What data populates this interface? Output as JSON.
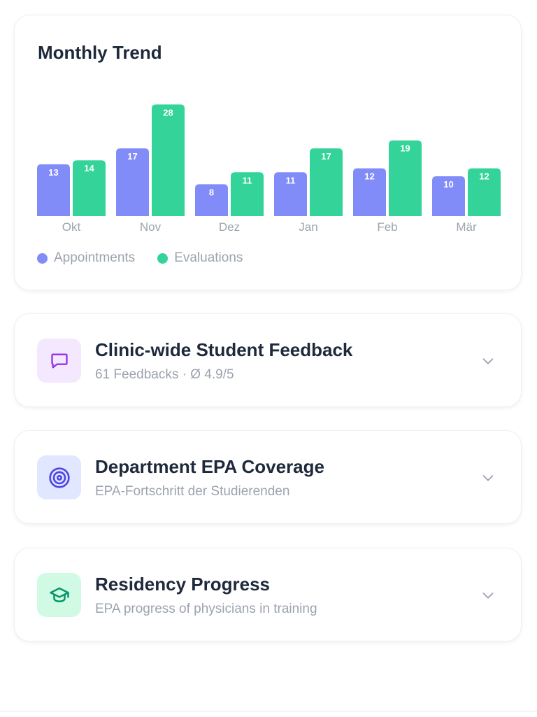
{
  "trend": {
    "title": "Monthly Trend",
    "colors": {
      "appointments": "#818cf8",
      "evaluations": "#34d399"
    }
  },
  "chart_data": {
    "type": "bar",
    "title": "Monthly Trend",
    "categories": [
      "Okt",
      "Nov",
      "Dez",
      "Jan",
      "Feb",
      "Mär"
    ],
    "series": [
      {
        "name": "Appointments",
        "values": [
          13,
          17,
          8,
          11,
          12,
          10
        ]
      },
      {
        "name": "Evaluations",
        "values": [
          14,
          28,
          11,
          17,
          19,
          12
        ]
      }
    ],
    "legend": "bottom-left",
    "grid": false,
    "data_labels": true
  },
  "cards": [
    {
      "title": "Clinic-wide Student Feedback",
      "subtitle": "61 Feedbacks · Ø 4.9/5",
      "icon": "chat-bubble-icon",
      "icon_bg": "#f3e8fd",
      "icon_color": "#9333ea"
    },
    {
      "title": "Department EPA Coverage",
      "subtitle": "EPA-Fortschritt der Studierenden",
      "icon": "target-icon",
      "icon_bg": "#e0e7ff",
      "icon_color": "#4f46e5"
    },
    {
      "title": "Residency Progress",
      "subtitle": "EPA progress of physicians in training",
      "icon": "graduation-cap-icon",
      "icon_bg": "#d1fae5",
      "icon_color": "#059669"
    }
  ]
}
